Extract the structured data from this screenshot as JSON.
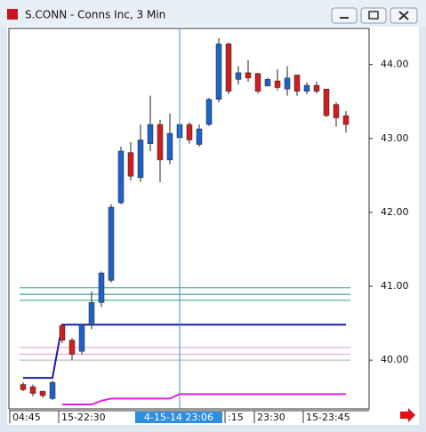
{
  "window": {
    "title": "S.CONN - Conns Inc, 3 Min"
  },
  "chart_data": {
    "type": "candlestick",
    "categories": [
      "04:45",
      null,
      null,
      null,
      null,
      "15-22:30",
      null,
      null,
      null,
      null,
      null,
      null,
      null,
      null,
      null,
      null,
      "4-15-14 23:06",
      null,
      null,
      null,
      null,
      null,
      ":15",
      null,
      null,
      "23:30",
      null,
      null,
      null,
      null,
      "15-23:45",
      null,
      null,
      null
    ],
    "open": [
      39.67,
      39.64,
      39.58,
      39.48,
      40.47,
      40.27,
      40.12,
      40.48,
      40.78,
      41.08,
      42.13,
      42.81,
      42.47,
      42.93,
      43.19,
      42.71,
      43.01,
      43.19,
      42.92,
      43.19,
      43.53,
      44.28,
      43.8,
      43.89,
      43.88,
      43.71,
      43.78,
      43.67,
      43.86,
      43.64,
      43.72,
      43.67,
      43.46,
      43.31
    ],
    "high": [
      39.7,
      39.67,
      39.55,
      39.72,
      40.49,
      40.3,
      40.48,
      40.93,
      41.2,
      42.11,
      42.89,
      42.95,
      43.19,
      43.58,
      43.25,
      43.34,
      43.25,
      43.22,
      43.19,
      43.55,
      44.36,
      44.3,
      43.98,
      44.06,
      43.89,
      43.82,
      43.94,
      43.98,
      43.86,
      43.76,
      43.77,
      43.67,
      43.49,
      43.37
    ],
    "low": [
      39.58,
      39.51,
      39.49,
      39.46,
      40.23,
      40.0,
      40.08,
      40.42,
      40.72,
      41.05,
      42.11,
      42.43,
      42.41,
      42.83,
      42.41,
      42.65,
      42.98,
      42.93,
      42.89,
      43.17,
      43.49,
      43.6,
      43.73,
      43.77,
      43.61,
      43.73,
      43.65,
      43.58,
      43.58,
      43.6,
      43.61,
      43.29,
      43.16,
      43.08
    ],
    "close": [
      39.6,
      39.55,
      39.52,
      39.7,
      40.27,
      40.08,
      40.48,
      40.78,
      41.18,
      42.07,
      42.83,
      42.49,
      42.98,
      43.19,
      42.71,
      43.07,
      43.19,
      42.98,
      43.13,
      43.53,
      44.28,
      43.64,
      43.89,
      43.82,
      43.64,
      43.8,
      43.69,
      43.82,
      43.64,
      43.72,
      43.64,
      43.31,
      43.28,
      43.19
    ],
    "up_color": "#1e62c6",
    "down_color": "#cc1f1f",
    "levels": [
      {
        "value": 40.98,
        "color": "#2eaa6a"
      },
      {
        "value": 40.89,
        "color": "#138a8a"
      },
      {
        "value": 40.81,
        "color": "#2eaa6a"
      },
      {
        "value": 40.17,
        "color": "#e79ad0"
      },
      {
        "value": 40.08,
        "color": "#e79ad0"
      },
      {
        "value": 40.0,
        "color": "#b9a9c0"
      }
    ],
    "lines": [
      {
        "color": "#1c1ca8",
        "values": [
          39.76,
          39.76,
          39.76,
          39.76,
          40.48,
          40.48,
          40.48,
          40.48,
          40.48,
          40.48,
          40.48,
          40.48,
          40.48,
          40.48,
          40.48,
          40.48,
          40.48,
          40.48,
          40.48,
          40.48,
          40.48,
          40.48,
          40.48,
          40.48,
          40.48,
          40.48,
          40.48,
          40.48,
          40.48,
          40.48,
          40.48,
          40.48,
          40.48,
          40.48
        ]
      },
      {
        "color": "#e020e0",
        "values": [
          null,
          null,
          null,
          null,
          39.4,
          39.4,
          39.4,
          39.4,
          39.45,
          39.48,
          39.48,
          39.48,
          39.48,
          39.48,
          39.48,
          39.48,
          39.54,
          39.54,
          39.54,
          39.54,
          39.54,
          39.54,
          39.54,
          39.54,
          39.54,
          39.54,
          39.54,
          39.54,
          39.54,
          39.54,
          39.54,
          39.54,
          39.54,
          39.54
        ]
      }
    ],
    "crosshair_category": 16,
    "ylim": [
      39.34,
      44.49
    ],
    "yticks": [
      {
        "value": 40,
        "label": "40.00"
      },
      {
        "value": 41,
        "label": "41.00"
      },
      {
        "value": 42,
        "label": "42.00"
      },
      {
        "value": 43,
        "label": "43.00"
      },
      {
        "value": 44,
        "label": "44.00"
      }
    ]
  }
}
